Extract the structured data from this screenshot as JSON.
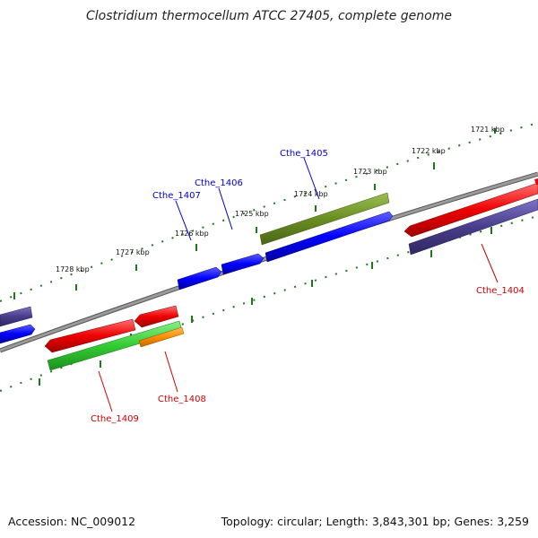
{
  "title": "Clostridium thermocellum ATCC 27405, complete genome",
  "footer": {
    "accession": "Accession: NC_009012",
    "summary": "Topology: circular; Length: 3,843,301 bp; Genes: 3,259"
  },
  "ticks": {
    "labels": [
      "1721 kbp",
      "1722 kbp",
      "1723 kbp",
      "1724 kbp",
      "1725 kbp",
      "1726 kbp",
      "1727 kbp",
      "1728 kbp"
    ]
  },
  "genes": {
    "forward_labels": [
      "Cthe_1405",
      "Cthe_1406",
      "Cthe_1407"
    ],
    "reverse_labels": [
      "Cthe_1404",
      "Cthe_1408",
      "Cthe_1409"
    ],
    "forward_color": "#0000cc",
    "reverse_color": "#cc0000"
  },
  "colors": {
    "backbone": "#808080",
    "tick": "#1a7a1a",
    "forward_cds": "#0000ff",
    "reverse_cds": "#ee0000",
    "olive_feature": "#6b8e23",
    "slate_feature": "#483d8b",
    "green_feature": "#33cc33",
    "orange_feature": "#ff8c00"
  }
}
